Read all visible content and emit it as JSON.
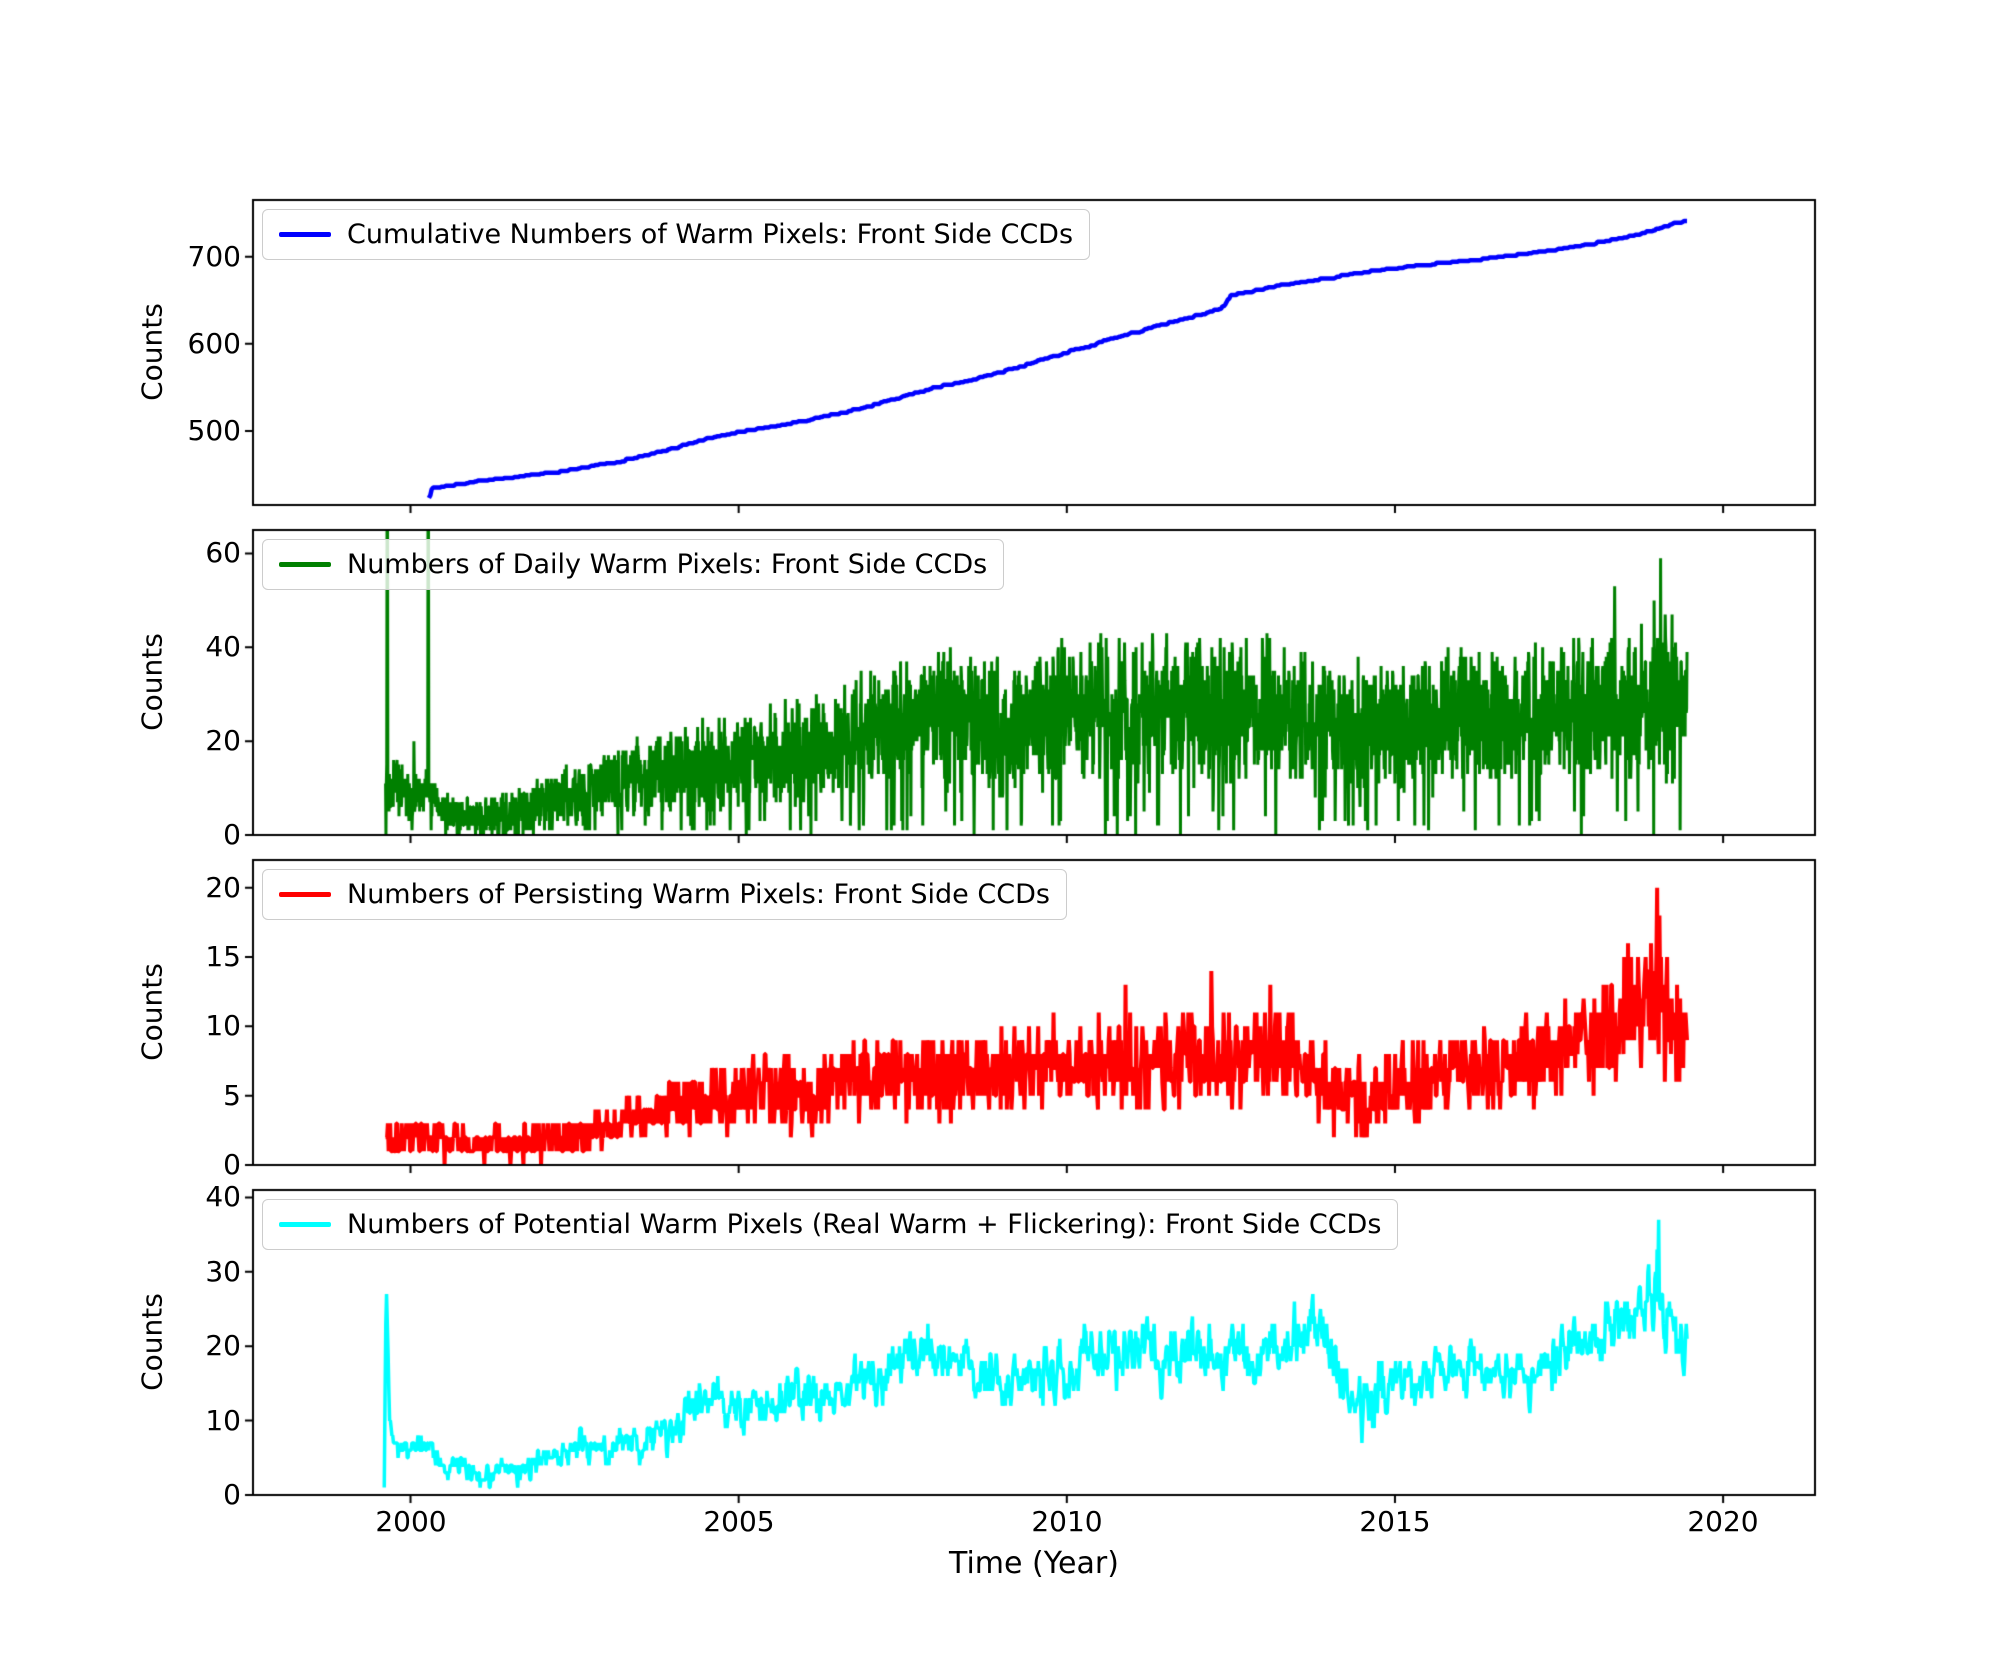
{
  "chart_data": {
    "type": "line",
    "title": "",
    "xlabel": "Time (Year)",
    "ylabel": "Counts",
    "xlim": [
      1997.6,
      2021.4
    ],
    "xticks": [
      2000,
      2005,
      2010,
      2015,
      2020
    ],
    "x_data_range": [
      1999.62,
      2019.45
    ],
    "legend_position": "upper-left",
    "grid": false,
    "panels": [
      {
        "name": "cumulative-warm-pixels",
        "legend": "Cumulative Numbers of Warm Pixels: Front Side CCDs",
        "color": "#0000ff",
        "ylabel": "Counts",
        "ylim": [
          415,
          765
        ],
        "yticks": [
          500,
          600,
          700
        ],
        "t_range": [
          2000.28,
          2019.45
        ],
        "n_points": 900,
        "seed": 7,
        "monotonic": true,
        "integer": true,
        "noise_scale": 1,
        "trend": [
          [
            2000.28,
            424
          ],
          [
            2000.34,
            434
          ],
          [
            2000.9,
            440
          ],
          [
            2001.3,
            444
          ],
          [
            2001.7,
            447
          ],
          [
            2002,
            450
          ],
          [
            2002.5,
            455
          ],
          [
            2003,
            462
          ],
          [
            2003.5,
            470
          ],
          [
            2004,
            479
          ],
          [
            2004.5,
            490
          ],
          [
            2005,
            498
          ],
          [
            2005.5,
            504
          ],
          [
            2006,
            511
          ],
          [
            2006.5,
            519
          ],
          [
            2007,
            528
          ],
          [
            2007.5,
            539
          ],
          [
            2008,
            549
          ],
          [
            2008.5,
            557
          ],
          [
            2009,
            567
          ],
          [
            2009.5,
            578
          ],
          [
            2010,
            590
          ],
          [
            2010.5,
            601
          ],
          [
            2011,
            612
          ],
          [
            2011.5,
            622
          ],
          [
            2012,
            632
          ],
          [
            2012.35,
            640
          ],
          [
            2012.5,
            655
          ],
          [
            2013,
            663
          ],
          [
            2013.5,
            669
          ],
          [
            2014,
            675
          ],
          [
            2014.5,
            681
          ],
          [
            2015,
            686
          ],
          [
            2015.5,
            690
          ],
          [
            2016,
            694
          ],
          [
            2016.5,
            698
          ],
          [
            2017,
            703
          ],
          [
            2017.5,
            708
          ],
          [
            2018,
            714
          ],
          [
            2018.5,
            721
          ],
          [
            2019,
            731
          ],
          [
            2019.2,
            736
          ],
          [
            2019.45,
            741
          ]
        ],
        "amp": [
          [
            2000.28,
            0
          ],
          [
            2019.45,
            0
          ]
        ],
        "spikes": []
      },
      {
        "name": "daily-warm-pixels",
        "legend": "Numbers of Daily Warm Pixels: Front Side CCDs",
        "color": "#008000",
        "ylabel": "Counts",
        "ylim": [
          0,
          65
        ],
        "yticks": [
          0,
          20,
          40,
          60
        ],
        "t_range": [
          1999.62,
          2019.45
        ],
        "n_points": 3400,
        "seed": 13,
        "integer": true,
        "dropout": 0.04,
        "noise_scale": 1.5,
        "trend": [
          [
            1999.62,
            12
          ],
          [
            1999.9,
            9
          ],
          [
            2000.0,
            8
          ],
          [
            2000.25,
            10
          ],
          [
            2000.45,
            6
          ],
          [
            2000.7,
            4
          ],
          [
            2001.1,
            4
          ],
          [
            2001.5,
            5
          ],
          [
            2002.0,
            7
          ],
          [
            2002.5,
            9
          ],
          [
            2003.0,
            11
          ],
          [
            2003.5,
            12
          ],
          [
            2004.0,
            14
          ],
          [
            2004.5,
            15
          ],
          [
            2005.0,
            16
          ],
          [
            2005.5,
            17
          ],
          [
            2006.0,
            17
          ],
          [
            2006.5,
            19
          ],
          [
            2007.0,
            22
          ],
          [
            2007.5,
            24
          ],
          [
            2008.0,
            25
          ],
          [
            2008.5,
            24
          ],
          [
            2009.0,
            23
          ],
          [
            2009.5,
            24
          ],
          [
            2010.0,
            26
          ],
          [
            2010.5,
            27
          ],
          [
            2011.0,
            26
          ],
          [
            2012.0,
            26
          ],
          [
            2012.5,
            25
          ],
          [
            2013.0,
            26
          ],
          [
            2013.5,
            25
          ],
          [
            2014.0,
            23
          ],
          [
            2014.5,
            22
          ],
          [
            2015.0,
            23
          ],
          [
            2015.5,
            24
          ],
          [
            2016.0,
            25
          ],
          [
            2017.0,
            25
          ],
          [
            2017.5,
            26
          ],
          [
            2018.0,
            27
          ],
          [
            2018.5,
            28
          ],
          [
            2019.0,
            30
          ],
          [
            2019.45,
            28
          ]
        ],
        "amp": [
          [
            1999.62,
            5
          ],
          [
            2000.4,
            3
          ],
          [
            2001.0,
            3
          ],
          [
            2002.0,
            4
          ],
          [
            2003.0,
            6
          ],
          [
            2004.0,
            7
          ],
          [
            2005.0,
            8
          ],
          [
            2006.0,
            9
          ],
          [
            2007.0,
            10
          ],
          [
            2008.0,
            11
          ],
          [
            2009.0,
            11
          ],
          [
            2010.0,
            12
          ],
          [
            2012.0,
            12
          ],
          [
            2014.0,
            11
          ],
          [
            2016.0,
            11
          ],
          [
            2018.0,
            12
          ],
          [
            2019.0,
            13
          ],
          [
            2019.45,
            12
          ]
        ],
        "spikes": [
          [
            1999.645,
            80
          ],
          [
            1999.652,
            74
          ],
          [
            2000.05,
            20
          ],
          [
            2000.265,
            80
          ],
          [
            2000.272,
            70
          ],
          [
            2018.35,
            53
          ],
          [
            2018.95,
            50
          ],
          [
            2019.05,
            59
          ]
        ]
      },
      {
        "name": "persisting-warm-pixels",
        "legend": "Numbers of Persisting Warm Pixels: Front Side CCDs",
        "color": "#ff0000",
        "ylabel": "Counts",
        "ylim": [
          0,
          22
        ],
        "yticks": [
          0,
          5,
          10,
          15,
          20
        ],
        "t_range": [
          1999.62,
          2019.45
        ],
        "n_points": 1700,
        "seed": 101,
        "integer": true,
        "noise_scale": 1.3,
        "trend": [
          [
            1999.62,
            2
          ],
          [
            2000.0,
            2
          ],
          [
            2000.5,
            1.8
          ],
          [
            2001.0,
            1.5
          ],
          [
            2001.5,
            1.6
          ],
          [
            2002.0,
            2
          ],
          [
            2002.5,
            2.2
          ],
          [
            2003.0,
            2.5
          ],
          [
            2003.5,
            3.5
          ],
          [
            2004.0,
            4
          ],
          [
            2004.5,
            4.5
          ],
          [
            2005.0,
            5
          ],
          [
            2005.5,
            5.5
          ],
          [
            2006.0,
            5
          ],
          [
            2006.5,
            5.5
          ],
          [
            2007.0,
            6.5
          ],
          [
            2007.5,
            7
          ],
          [
            2008.0,
            6.5
          ],
          [
            2008.5,
            6
          ],
          [
            2009.0,
            6.5
          ],
          [
            2009.5,
            7
          ],
          [
            2010.0,
            7
          ],
          [
            2010.5,
            7.5
          ],
          [
            2011.0,
            7
          ],
          [
            2011.5,
            7.5
          ],
          [
            2012.0,
            7.5
          ],
          [
            2012.5,
            7
          ],
          [
            2013.0,
            8
          ],
          [
            2013.5,
            7.5
          ],
          [
            2014.0,
            6
          ],
          [
            2014.5,
            5
          ],
          [
            2015.0,
            5.5
          ],
          [
            2015.5,
            6
          ],
          [
            2016.0,
            6.5
          ],
          [
            2016.5,
            7
          ],
          [
            2017.0,
            7.5
          ],
          [
            2017.5,
            8
          ],
          [
            2018.0,
            9
          ],
          [
            2018.5,
            11
          ],
          [
            2019.0,
            12
          ],
          [
            2019.2,
            10
          ],
          [
            2019.45,
            9
          ]
        ],
        "amp": [
          [
            1999.62,
            1.5
          ],
          [
            2001,
            1.2
          ],
          [
            2003,
            1.5
          ],
          [
            2005,
            2.5
          ],
          [
            2007,
            3
          ],
          [
            2009,
            3
          ],
          [
            2011,
            3.2
          ],
          [
            2013,
            3.2
          ],
          [
            2015,
            2.8
          ],
          [
            2017,
            3
          ],
          [
            2018,
            3.5
          ],
          [
            2019,
            4
          ],
          [
            2019.45,
            3.5
          ]
        ],
        "spikes": [
          [
            2010.9,
            13
          ],
          [
            2012.2,
            14
          ],
          [
            2013.1,
            13
          ],
          [
            2018.55,
            16
          ],
          [
            2018.6,
            15
          ],
          [
            2019.0,
            20
          ],
          [
            2019.03,
            18
          ]
        ]
      },
      {
        "name": "potential-warm-pixels",
        "legend": "Numbers of Potential Warm Pixels (Real Warm + Flickering): Front Side CCDs",
        "color": "#00ffff",
        "ylabel": "Counts",
        "ylim": [
          0,
          41
        ],
        "yticks": [
          0,
          10,
          20,
          30,
          40
        ],
        "t_range": [
          1999.6,
          2019.45
        ],
        "n_points": 1700,
        "seed": 42,
        "integer": true,
        "smooth": true,
        "noise_scale": 1.2,
        "trend": [
          [
            1999.6,
            1
          ],
          [
            1999.63,
            29
          ],
          [
            1999.68,
            10
          ],
          [
            1999.8,
            7
          ],
          [
            2000.0,
            6
          ],
          [
            2000.3,
            7
          ],
          [
            2000.5,
            4
          ],
          [
            2000.8,
            3.5
          ],
          [
            2001.2,
            2.5
          ],
          [
            2001.6,
            3
          ],
          [
            2002.0,
            5
          ],
          [
            2002.5,
            6
          ],
          [
            2003.0,
            6
          ],
          [
            2003.5,
            7
          ],
          [
            2004.0,
            9
          ],
          [
            2004.3,
            12
          ],
          [
            2004.6,
            13
          ],
          [
            2005.0,
            11
          ],
          [
            2005.5,
            12
          ],
          [
            2006.0,
            13
          ],
          [
            2006.5,
            14
          ],
          [
            2007.0,
            16
          ],
          [
            2007.5,
            18
          ],
          [
            2007.9,
            20
          ],
          [
            2008.3,
            18
          ],
          [
            2008.8,
            16
          ],
          [
            2009.2,
            15
          ],
          [
            2009.6,
            16
          ],
          [
            2010.0,
            17
          ],
          [
            2010.4,
            20
          ],
          [
            2010.8,
            19
          ],
          [
            2011.2,
            20
          ],
          [
            2011.6,
            19
          ],
          [
            2012.0,
            18
          ],
          [
            2012.5,
            19
          ],
          [
            2013.0,
            19
          ],
          [
            2013.5,
            21
          ],
          [
            2013.8,
            23
          ],
          [
            2014.1,
            18
          ],
          [
            2014.4,
            12
          ],
          [
            2014.8,
            14
          ],
          [
            2015.2,
            15
          ],
          [
            2015.6,
            16
          ],
          [
            2016.0,
            17
          ],
          [
            2016.5,
            16
          ],
          [
            2017.0,
            16
          ],
          [
            2017.5,
            19
          ],
          [
            2018.0,
            21
          ],
          [
            2018.4,
            23
          ],
          [
            2018.8,
            25
          ],
          [
            2019.0,
            27
          ],
          [
            2019.2,
            22
          ],
          [
            2019.45,
            20
          ]
        ],
        "amp": [
          [
            1999.6,
            1.5
          ],
          [
            2000.5,
            1.2
          ],
          [
            2002,
            1.5
          ],
          [
            2004,
            2.5
          ],
          [
            2006,
            2.5
          ],
          [
            2008,
            3
          ],
          [
            2010,
            3.5
          ],
          [
            2012,
            3.5
          ],
          [
            2014,
            3.5
          ],
          [
            2016,
            3
          ],
          [
            2018,
            3.5
          ],
          [
            2019,
            4
          ],
          [
            2019.45,
            3
          ]
        ],
        "spikes": [
          [
            2018.85,
            30
          ],
          [
            2019.0,
            33
          ],
          [
            2019.02,
            37
          ]
        ]
      }
    ]
  }
}
